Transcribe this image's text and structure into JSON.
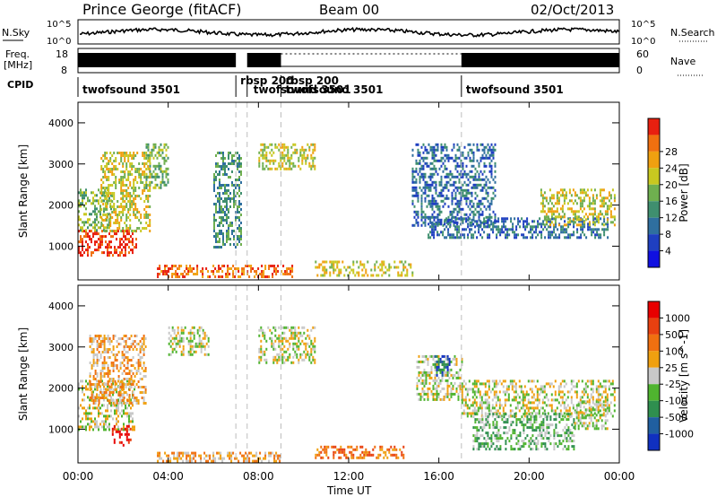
{
  "header": {
    "station": "Prince George (fitACF)",
    "beam": "Beam 00",
    "date": "02/Oct/2013"
  },
  "top_panel": {
    "nsky_label": "N.Sky",
    "nsearch_label": "N.Search",
    "left_ticks": [
      "10^5",
      "10^0"
    ],
    "right_ticks": [
      "10^5",
      "10^0"
    ]
  },
  "freq_panel": {
    "freq_label": "Freq.",
    "freq_unit": "[MHz]",
    "freq_ticks": [
      "18",
      "8"
    ],
    "nave_label": "Nave",
    "nave_ticks": [
      "60",
      "0"
    ]
  },
  "cpid": {
    "label": "CPID",
    "entries": [
      {
        "text": "twofsound 3501",
        "start_hour": 0.0
      },
      {
        "text": "rbsp 200",
        "start_hour": 7.0
      },
      {
        "text": "twofsound 3501",
        "start_hour": 7.5
      },
      {
        "text": "rbsp 200",
        "start_hour": 8.8
      },
      {
        "text": "twofsound 3501",
        "start_hour": 9.0
      },
      {
        "text": "twofsound 3501",
        "start_hour": 17.0
      }
    ],
    "boundaries_hours": [
      7.0,
      7.5,
      9.0,
      17.0
    ]
  },
  "x_axis": {
    "label": "Time UT",
    "ticks": [
      "00:00",
      "04:00",
      "08:00",
      "12:00",
      "16:00",
      "20:00",
      "00:00"
    ],
    "tick_hours": [
      0,
      4,
      8,
      12,
      16,
      20,
      24
    ],
    "range": [
      0,
      24
    ]
  },
  "chart_data": [
    {
      "type": "heatmap",
      "name": "power",
      "ylabel": "Slant Range [km]",
      "ylim": [
        180,
        4500
      ],
      "y_ticks": [
        1000,
        2000,
        3000,
        4000
      ],
      "colorbar": {
        "label": "Power [dB]",
        "ticks": [
          "4",
          "8",
          "12",
          "16",
          "20",
          "24",
          "28"
        ],
        "colors": [
          "#1010e0",
          "#1f3fc0",
          "#2f6f9f",
          "#3f8f6f",
          "#6faf4f",
          "#c8c820",
          "#f0a010",
          "#f07010",
          "#e82010"
        ]
      },
      "regions": [
        {
          "t0": 0.0,
          "t1": 2.6,
          "r0": 750,
          "r1": 1400,
          "level": 8
        },
        {
          "t0": 0.0,
          "t1": 1.5,
          "r0": 1400,
          "r1": 2400,
          "level": 4
        },
        {
          "t0": 1.0,
          "t1": 3.2,
          "r0": 1400,
          "r1": 3300,
          "level": 5
        },
        {
          "t0": 3.0,
          "t1": 4.0,
          "r0": 2400,
          "r1": 3500,
          "level": 4
        },
        {
          "t0": 3.5,
          "t1": 9.5,
          "r0": 250,
          "r1": 550,
          "level": 7
        },
        {
          "t0": 8.0,
          "t1": 10.5,
          "r0": 2900,
          "r1": 3500,
          "level": 5
        },
        {
          "t0": 6.0,
          "t1": 7.2,
          "r0": 1000,
          "r1": 3300,
          "level": 3
        },
        {
          "t0": 10.5,
          "t1": 14.8,
          "r0": 300,
          "r1": 650,
          "level": 5
        },
        {
          "t0": 14.8,
          "t1": 18.5,
          "r0": 1500,
          "r1": 3500,
          "level": 2
        },
        {
          "t0": 15.5,
          "t1": 23.5,
          "r0": 1200,
          "r1": 1700,
          "level": 2
        },
        {
          "t0": 20.5,
          "t1": 23.8,
          "r0": 1500,
          "r1": 2400,
          "level": 5
        }
      ]
    },
    {
      "type": "heatmap",
      "name": "velocity",
      "ylabel": "Slant Range [km]",
      "ylim": [
        180,
        4500
      ],
      "y_ticks": [
        1000,
        2000,
        3000,
        4000
      ],
      "colorbar": {
        "label": "Velocity [m s^-1]",
        "ticks": [
          "1000",
          "500",
          "100",
          "25",
          "-25",
          "-100",
          "-500",
          "-1000"
        ],
        "colors": [
          "#1030c0",
          "#205fa0",
          "#2f8f4f",
          "#4fb42f",
          "#c8c8c8",
          "#f0a010",
          "#f07010",
          "#e84010",
          "#e80000"
        ]
      },
      "regions": [
        {
          "t0": 0.0,
          "t1": 2.5,
          "r0": 1000,
          "r1": 2200,
          "level": 4
        },
        {
          "t0": 0.5,
          "t1": 3.0,
          "r0": 1600,
          "r1": 3300,
          "level": 5
        },
        {
          "t0": 1.5,
          "t1": 2.4,
          "r0": 600,
          "r1": 1100,
          "level": 8
        },
        {
          "t0": 4.0,
          "t1": 5.8,
          "r0": 2800,
          "r1": 3500,
          "level": 4
        },
        {
          "t0": 3.5,
          "t1": 9.0,
          "r0": 200,
          "r1": 450,
          "level": 5
        },
        {
          "t0": 8.0,
          "t1": 10.5,
          "r0": 2600,
          "r1": 3500,
          "level": 4
        },
        {
          "t0": 10.5,
          "t1": 14.5,
          "r0": 300,
          "r1": 600,
          "level": 6
        },
        {
          "t0": 15.0,
          "t1": 17.0,
          "r0": 1700,
          "r1": 2800,
          "level": 4
        },
        {
          "t0": 15.8,
          "t1": 16.5,
          "r0": 2300,
          "r1": 2800,
          "level": 1
        },
        {
          "t0": 17.0,
          "t1": 23.8,
          "r0": 1300,
          "r1": 2200,
          "level": 4
        },
        {
          "t0": 17.5,
          "t1": 22.0,
          "r0": 500,
          "r1": 1400,
          "level": 3
        },
        {
          "t0": 22.0,
          "t1": 23.5,
          "r0": 1000,
          "r1": 1700,
          "level": 4
        }
      ]
    }
  ]
}
